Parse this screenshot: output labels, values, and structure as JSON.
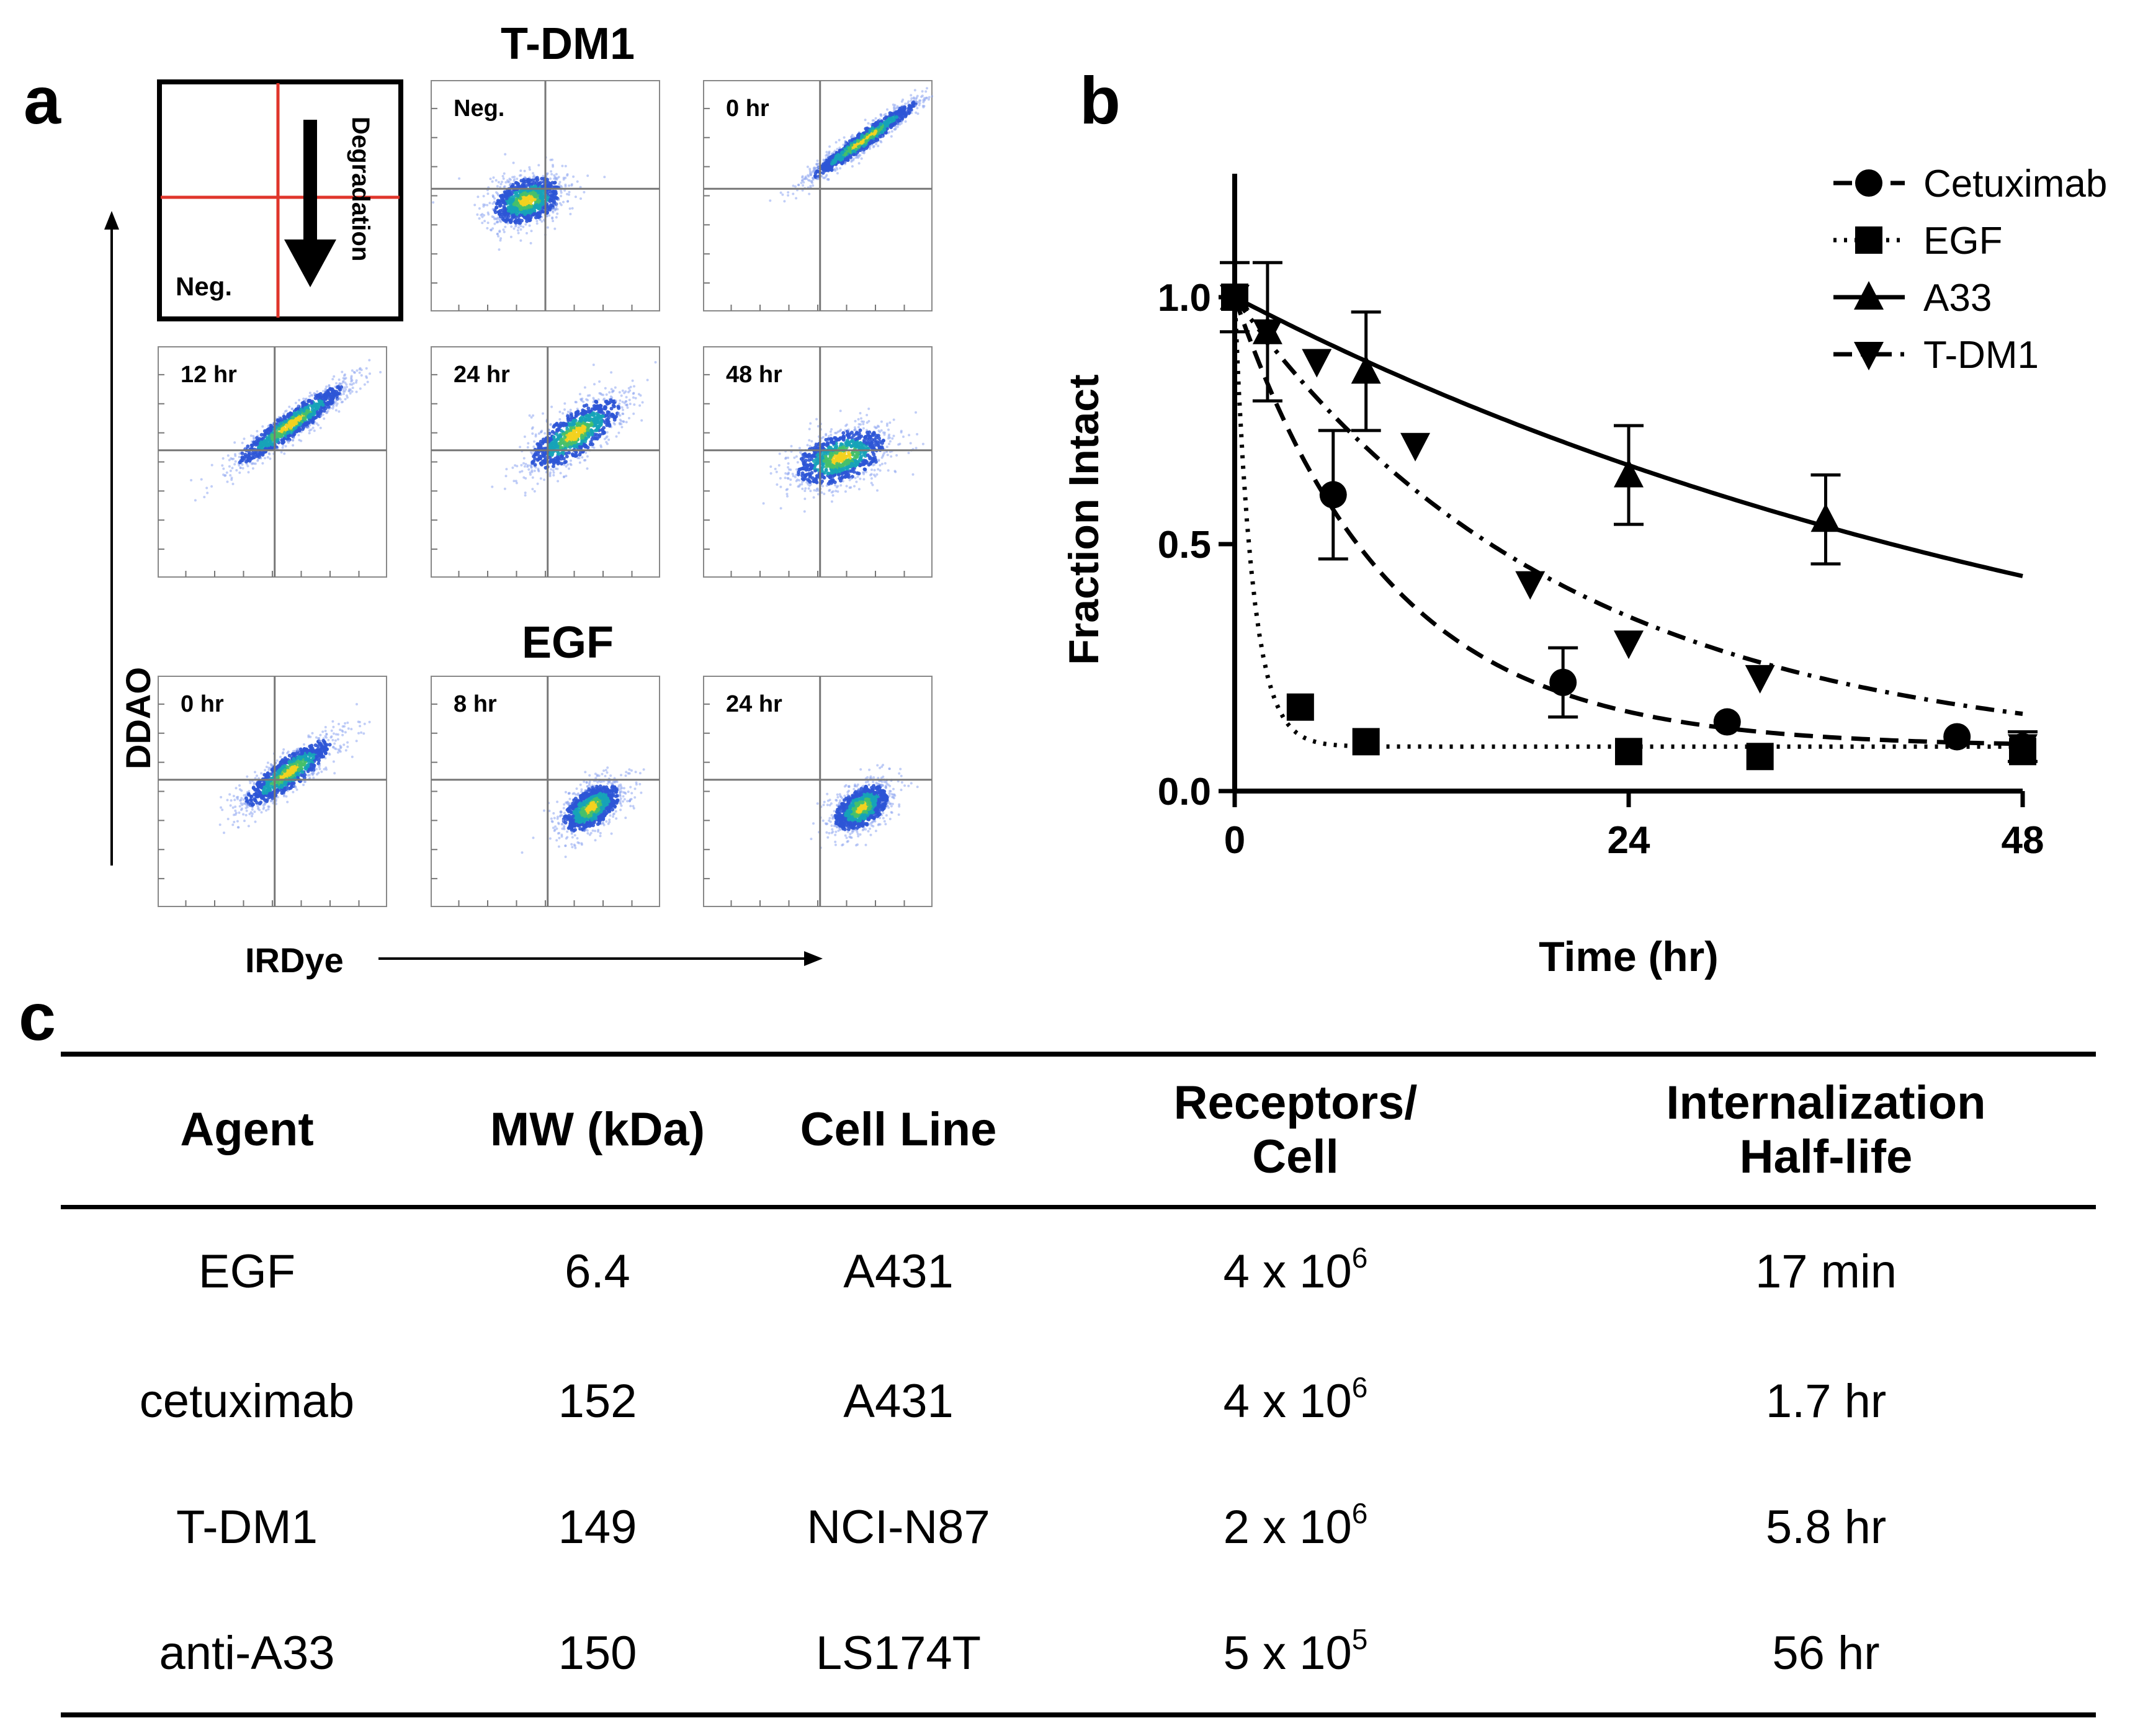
{
  "panels": {
    "a": {
      "letter": "a",
      "tdm1_title": "T-DM1",
      "egf_title": "EGF",
      "y_label": "DDAO",
      "x_label": "IRDye",
      "schematic": {
        "neg_label": "Neg.",
        "arrow_label": "Degradation",
        "line_color": "#e0352b"
      },
      "tdm1_plots": [
        "Neg.",
        "0 hr",
        "12 hr",
        "24 hr",
        "48 hr"
      ],
      "egf_plots": [
        "0 hr",
        "8 hr",
        "24 hr"
      ]
    },
    "b": {
      "letter": "b"
    },
    "c": {
      "letter": "c"
    }
  },
  "chart_data": {
    "type": "line",
    "xlabel": "Time (hr)",
    "ylabel": "Fraction Intact",
    "xlim": [
      0,
      48
    ],
    "ylim": [
      0,
      1.25
    ],
    "xticks": [
      "0",
      "24",
      "48"
    ],
    "yticks": [
      "0.0",
      "0.5",
      "1.0"
    ],
    "legend_position": "top-right",
    "series": [
      {
        "name": "Cetuximab",
        "marker": "circle",
        "line_style": "dashed",
        "x": [
          0,
          6,
          20,
          30,
          44,
          48
        ],
        "y": [
          1.0,
          0.6,
          0.22,
          0.14,
          0.11,
          0.09
        ],
        "err": [
          0.0,
          0.13,
          0.07,
          0.0,
          0.0,
          0.03
        ],
        "fit_halflife_hr": 6.5,
        "fit_plateau": 0.09
      },
      {
        "name": "EGF",
        "marker": "square",
        "line_style": "dotted",
        "x": [
          0,
          4,
          8,
          24,
          32,
          48
        ],
        "y": [
          1.0,
          0.17,
          0.1,
          0.08,
          0.07,
          0.08
        ],
        "err": [
          0,
          0,
          0,
          0,
          0,
          0
        ],
        "fit_halflife_hr": 0.75,
        "fit_plateau": 0.09
      },
      {
        "name": "A33",
        "marker": "triangle-up",
        "line_style": "solid",
        "x": [
          0,
          2,
          8,
          24,
          36
        ],
        "y": [
          1.0,
          0.93,
          0.85,
          0.64,
          0.55
        ],
        "err": [
          0.07,
          0.14,
          0.12,
          0.1,
          0.09
        ],
        "fit_halflife_hr": 40,
        "fit_plateau": 0.0
      },
      {
        "name": "T-DM1",
        "marker": "triangle-down",
        "line_style": "dashdot",
        "x": [
          0,
          2,
          5,
          11,
          18,
          24,
          32,
          48
        ],
        "y": [
          1.0,
          0.93,
          0.87,
          0.7,
          0.42,
          0.3,
          0.23,
          0.09
        ],
        "err": [
          0,
          0,
          0,
          0,
          0,
          0,
          0,
          0
        ],
        "fit_halflife_hr": 14,
        "fit_plateau": 0.07
      }
    ]
  },
  "table": {
    "headers": [
      [
        "Agent"
      ],
      [
        "MW (kDa)"
      ],
      [
        "Cell Line"
      ],
      [
        "Receptors/",
        "Cell"
      ],
      [
        "Internalization",
        "Half-life"
      ]
    ],
    "rows": [
      {
        "agent": "EGF",
        "mw": "6.4",
        "cell_line": "A431",
        "receptors_base": "4 x 10",
        "receptors_exp": "6",
        "halflife": "17 min"
      },
      {
        "agent": "cetuximab",
        "mw": "152",
        "cell_line": "A431",
        "receptors_base": "4 x 10",
        "receptors_exp": "6",
        "halflife": "1.7 hr"
      },
      {
        "agent": "T-DM1",
        "mw": "149",
        "cell_line": "NCI-N87",
        "receptors_base": "2 x 10",
        "receptors_exp": "6",
        "halflife": "5.8 hr"
      },
      {
        "agent": "anti-A33",
        "mw": "150",
        "cell_line": "LS174T",
        "receptors_base": "5 x 10",
        "receptors_exp": "5",
        "halflife": "56 hr"
      }
    ]
  }
}
